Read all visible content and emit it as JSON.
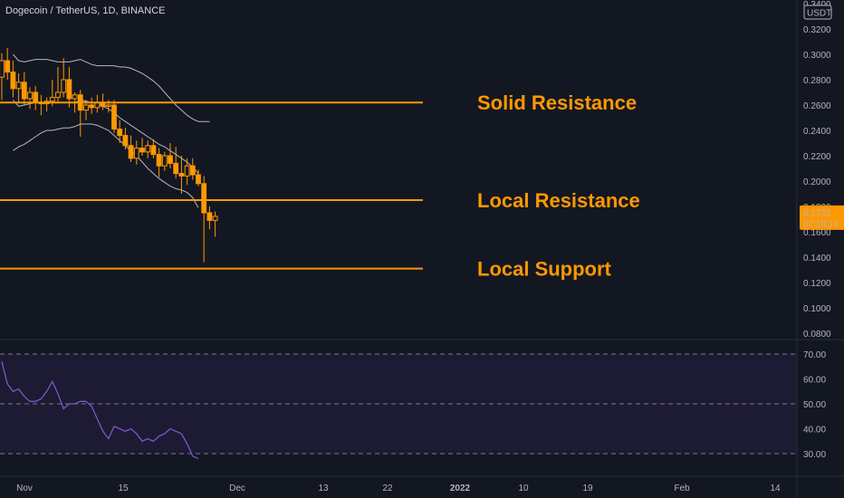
{
  "header": {
    "symbol_title": "Dogecoin / TetherUS, 1D, BINANCE"
  },
  "colors": {
    "background": "#131722",
    "candle": "#ff9800",
    "level_line": "#ff9800",
    "bollinger": "#d1d4dc",
    "rsi_line": "#7e57c2",
    "rsi_band": "#1d1a33",
    "price_tag": "#ff9800",
    "axis_text": "#b2b5be"
  },
  "chart_data": [
    {
      "type": "candlestick",
      "title": "Dogecoin / TetherUS, 1D, BINANCE",
      "quote_unit": "USDT",
      "y_ticks": [
        "0.3400",
        "0.3200",
        "0.3000",
        "0.2800",
        "0.2600",
        "0.2400",
        "0.2200",
        "0.2000",
        "0.1800",
        "0.1600",
        "0.1400",
        "0.1200",
        "0.1000",
        "0.0800"
      ],
      "ylim": [
        0.07,
        0.34
      ],
      "x_ticks": [
        "Nov",
        "15",
        "Dec",
        "13",
        "22",
        "2022",
        "10",
        "19",
        "Feb",
        "14"
      ],
      "last_price": "0.1722",
      "countdown": "07:18:13",
      "candles": [
        {
          "date": "2021-10-29",
          "o": 0.282,
          "h": 0.301,
          "l": 0.264,
          "c": 0.295
        },
        {
          "date": "2021-10-30",
          "o": 0.295,
          "h": 0.305,
          "l": 0.28,
          "c": 0.286
        },
        {
          "date": "2021-10-31",
          "o": 0.286,
          "h": 0.295,
          "l": 0.266,
          "c": 0.273
        },
        {
          "date": "2021-11-01",
          "o": 0.273,
          "h": 0.285,
          "l": 0.262,
          "c": 0.278
        },
        {
          "date": "2021-11-02",
          "o": 0.278,
          "h": 0.286,
          "l": 0.26,
          "c": 0.265
        },
        {
          "date": "2021-11-03",
          "o": 0.265,
          "h": 0.274,
          "l": 0.257,
          "c": 0.27
        },
        {
          "date": "2021-11-04",
          "o": 0.27,
          "h": 0.275,
          "l": 0.256,
          "c": 0.262
        },
        {
          "date": "2021-11-05",
          "o": 0.262,
          "h": 0.268,
          "l": 0.252,
          "c": 0.261
        },
        {
          "date": "2021-11-06",
          "o": 0.261,
          "h": 0.266,
          "l": 0.255,
          "c": 0.263
        },
        {
          "date": "2021-11-07",
          "o": 0.263,
          "h": 0.28,
          "l": 0.259,
          "c": 0.266
        },
        {
          "date": "2021-11-08",
          "o": 0.266,
          "h": 0.29,
          "l": 0.262,
          "c": 0.27
        },
        {
          "date": "2021-11-09",
          "o": 0.27,
          "h": 0.297,
          "l": 0.266,
          "c": 0.28
        },
        {
          "date": "2021-11-10",
          "o": 0.28,
          "h": 0.29,
          "l": 0.258,
          "c": 0.265
        },
        {
          "date": "2021-11-11",
          "o": 0.265,
          "h": 0.27,
          "l": 0.254,
          "c": 0.268
        },
        {
          "date": "2021-11-12",
          "o": 0.268,
          "h": 0.272,
          "l": 0.235,
          "c": 0.256
        },
        {
          "date": "2021-11-13",
          "o": 0.256,
          "h": 0.264,
          "l": 0.248,
          "c": 0.26
        },
        {
          "date": "2021-11-14",
          "o": 0.26,
          "h": 0.266,
          "l": 0.253,
          "c": 0.258
        },
        {
          "date": "2021-11-15",
          "o": 0.258,
          "h": 0.268,
          "l": 0.254,
          "c": 0.262
        },
        {
          "date": "2021-11-16",
          "o": 0.262,
          "h": 0.269,
          "l": 0.256,
          "c": 0.259
        },
        {
          "date": "2021-11-17",
          "o": 0.259,
          "h": 0.264,
          "l": 0.254,
          "c": 0.26
        },
        {
          "date": "2021-11-18",
          "o": 0.26,
          "h": 0.264,
          "l": 0.238,
          "c": 0.241
        },
        {
          "date": "2021-11-19",
          "o": 0.241,
          "h": 0.248,
          "l": 0.23,
          "c": 0.236
        },
        {
          "date": "2021-11-20",
          "o": 0.236,
          "h": 0.242,
          "l": 0.225,
          "c": 0.228
        },
        {
          "date": "2021-11-21",
          "o": 0.228,
          "h": 0.236,
          "l": 0.215,
          "c": 0.218
        },
        {
          "date": "2021-11-22",
          "o": 0.218,
          "h": 0.232,
          "l": 0.213,
          "c": 0.226
        },
        {
          "date": "2021-11-23",
          "o": 0.226,
          "h": 0.234,
          "l": 0.22,
          "c": 0.223
        },
        {
          "date": "2021-11-24",
          "o": 0.223,
          "h": 0.232,
          "l": 0.218,
          "c": 0.228
        },
        {
          "date": "2021-11-25",
          "o": 0.228,
          "h": 0.233,
          "l": 0.218,
          "c": 0.221
        },
        {
          "date": "2021-11-26",
          "o": 0.221,
          "h": 0.226,
          "l": 0.203,
          "c": 0.212
        },
        {
          "date": "2021-11-27",
          "o": 0.212,
          "h": 0.223,
          "l": 0.208,
          "c": 0.22
        },
        {
          "date": "2021-11-28",
          "o": 0.22,
          "h": 0.23,
          "l": 0.21,
          "c": 0.214
        },
        {
          "date": "2021-11-29",
          "o": 0.214,
          "h": 0.227,
          "l": 0.202,
          "c": 0.206
        },
        {
          "date": "2021-11-30",
          "o": 0.206,
          "h": 0.22,
          "l": 0.19,
          "c": 0.204
        },
        {
          "date": "2021-12-01",
          "o": 0.204,
          "h": 0.218,
          "l": 0.197,
          "c": 0.212
        },
        {
          "date": "2021-12-02",
          "o": 0.212,
          "h": 0.218,
          "l": 0.201,
          "c": 0.205
        },
        {
          "date": "2021-12-03",
          "o": 0.205,
          "h": 0.209,
          "l": 0.196,
          "c": 0.198
        },
        {
          "date": "2021-12-04",
          "o": 0.198,
          "h": 0.204,
          "l": 0.136,
          "c": 0.175
        },
        {
          "date": "2021-12-05",
          "o": 0.175,
          "h": 0.18,
          "l": 0.162,
          "c": 0.169
        },
        {
          "date": "2021-12-06",
          "o": 0.169,
          "h": 0.176,
          "l": 0.156,
          "c": 0.1722
        }
      ],
      "bollinger": {
        "upper": [
          [
            0.3,
            0.295,
            0.294,
            0.295,
            0.296,
            0.296,
            0.296,
            0.295,
            0.294,
            0.294,
            0.294,
            0.295,
            0.296,
            0.294,
            0.292,
            0.291,
            0.291,
            0.291,
            0.291,
            0.29,
            0.29,
            0.289,
            0.287,
            0.285,
            0.282,
            0.279,
            0.275,
            0.27,
            0.265,
            0.26,
            0.256,
            0.252,
            0.249,
            0.247,
            0.247,
            0.247
          ]
        ],
        "middle": [
          [
            0.264,
            0.259,
            0.26,
            0.261,
            0.262,
            0.262,
            0.262,
            0.262,
            0.262,
            0.262,
            0.262,
            0.262,
            0.264,
            0.263,
            0.262,
            0.261,
            0.259,
            0.257,
            0.254,
            0.25,
            0.247,
            0.244,
            0.241,
            0.238,
            0.235,
            0.232,
            0.229,
            0.227,
            0.224,
            0.221,
            0.218,
            0.215,
            0.211,
            0.206
          ]
        ],
        "lower": [
          [
            0.224,
            0.227,
            0.229,
            0.232,
            0.235,
            0.238,
            0.24,
            0.24,
            0.241,
            0.242,
            0.242,
            0.243,
            0.245,
            0.245,
            0.245,
            0.244,
            0.242,
            0.24,
            0.236,
            0.232,
            0.228,
            0.224,
            0.22,
            0.215,
            0.21,
            0.206,
            0.202,
            0.199,
            0.196,
            0.194,
            0.193,
            0.191,
            0.187,
            0.179
          ]
        ]
      },
      "levels": [
        {
          "label": "Solid Resistance",
          "price": 0.262
        },
        {
          "label": "Local Resistance",
          "price": 0.185
        },
        {
          "label": "Local Support",
          "price": 0.131
        }
      ]
    },
    {
      "type": "line",
      "indicator": "RSI",
      "y_ticks": [
        "70.00",
        "60.00",
        "50.00",
        "40.00",
        "30.00"
      ],
      "ylim": [
        20,
        80
      ],
      "band": [
        30,
        70
      ],
      "midline": 50,
      "values": [
        67,
        58,
        55,
        56,
        53,
        51,
        51,
        52,
        55,
        59,
        54,
        48,
        50,
        50,
        51,
        51,
        49,
        44,
        39,
        36,
        41,
        40,
        39,
        40,
        38,
        35,
        36,
        35,
        37,
        38,
        40,
        39,
        38,
        34,
        29,
        28
      ]
    }
  ]
}
